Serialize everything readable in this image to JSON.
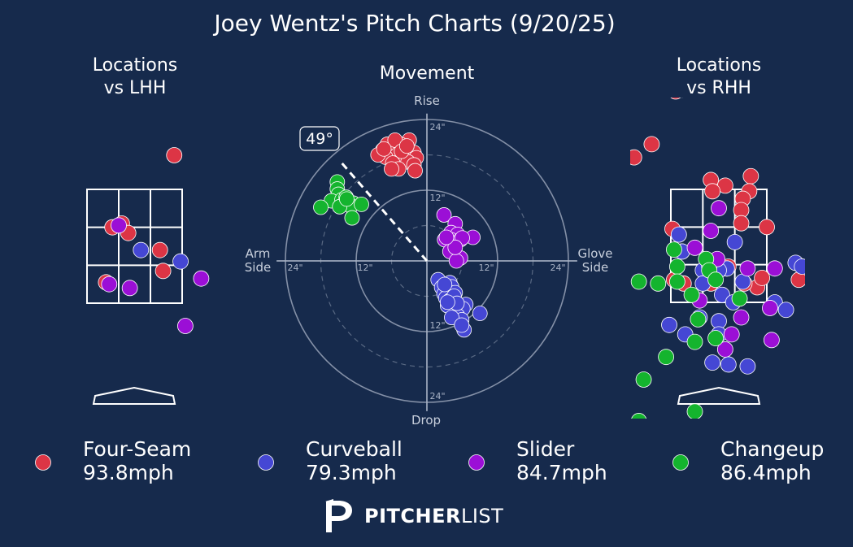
{
  "colors": {
    "background": "#162a4c",
    "four_seam": "#dc3545",
    "curveball": "#4547d4",
    "slider": "#9b0fd6",
    "changeup": "#14b42e",
    "grid": "#a9b3c6"
  },
  "title": "Joey Wentz's Pitch Charts (9/20/25)",
  "panels": {
    "lhh_title": [
      "Locations",
      "vs LHH"
    ],
    "movement_title": "Movement",
    "rhh_title": [
      "Locations",
      "vs RHH"
    ]
  },
  "movement_axes": {
    "top": "Rise",
    "bottom": "Drop",
    "left": [
      "Arm",
      "Side"
    ],
    "right": [
      "Glove",
      "Side"
    ],
    "ring_labels": [
      "24\"",
      "12\"",
      "12\"",
      "24\"",
      "24\"",
      "12\"",
      "12\"",
      "24\""
    ],
    "arm_angle_label": "49°"
  },
  "legend": [
    {
      "name": "Four-Seam",
      "speed": "93.8mph",
      "color_key": "four_seam"
    },
    {
      "name": "Curveball",
      "speed": "79.3mph",
      "color_key": "curveball"
    },
    {
      "name": "Slider",
      "speed": "84.7mph",
      "color_key": "slider"
    },
    {
      "name": "Changeup",
      "speed": "86.4mph",
      "color_key": "changeup"
    }
  ],
  "logo": {
    "bold": "PITCHER",
    "light": "LIST"
  },
  "chart_data": [
    {
      "type": "scatter",
      "title": "Locations vs LHH",
      "x_unit": "strike-zone thirds (0 = left edge, 3 = right edge)",
      "y_unit": "strike-zone thirds (0 = bottom, 3 = top)",
      "series": [
        {
          "name": "Four-Seam",
          "points": [
            [
              2.75,
              3.9
            ],
            [
              0.8,
              2.0
            ],
            [
              1.1,
              2.1
            ],
            [
              1.3,
              1.85
            ],
            [
              2.3,
              1.4
            ],
            [
              2.4,
              0.85
            ],
            [
              0.6,
              0.55
            ]
          ]
        },
        {
          "name": "Curveball",
          "points": [
            [
              1.7,
              1.4
            ],
            [
              2.95,
              1.1
            ]
          ]
        },
        {
          "name": "Slider",
          "points": [
            [
              1.0,
              2.05
            ],
            [
              0.7,
              0.5
            ],
            [
              1.35,
              0.4
            ],
            [
              3.6,
              0.65
            ],
            [
              3.1,
              -0.6
            ]
          ]
        },
        {
          "name": "Changeup",
          "points": []
        }
      ]
    },
    {
      "type": "scatter",
      "title": "Movement",
      "xlabel": "Arm Side / Glove Side",
      "ylabel": "Drop / Rise",
      "xlim": [
        -24,
        24
      ],
      "ylim": [
        -24,
        24
      ],
      "x_unit": "inches",
      "y_unit": "inches",
      "arm_angle_deg": 49,
      "series": [
        {
          "name": "Four-Seam",
          "points": [
            [
              -3.0,
              20.5
            ],
            [
              -4.5,
              19.8
            ],
            [
              -6.0,
              19.3
            ],
            [
              -7.5,
              18.8
            ],
            [
              -3.8,
              18.5
            ],
            [
              -5.5,
              18.0
            ],
            [
              -2.2,
              18.4
            ],
            [
              -7.0,
              17.6
            ],
            [
              -4.2,
              17.2
            ],
            [
              -1.8,
              17.5
            ],
            [
              -5.0,
              16.7
            ],
            [
              -3.2,
              16.8
            ],
            [
              -8.3,
              18.0
            ],
            [
              -2.2,
              16.3
            ],
            [
              -5.8,
              16.6
            ],
            [
              -6.7,
              19.8
            ],
            [
              -5.4,
              20.5
            ],
            [
              -4.8,
              15.6
            ],
            [
              -6.0,
              15.6
            ],
            [
              -2.0,
              15.3
            ],
            [
              -7.3,
              19.0
            ],
            [
              -4.3,
              18.6
            ],
            [
              -3.4,
              19.5
            ]
          ]
        },
        {
          "name": "Curveball",
          "points": [
            [
              1.9,
              -3.2
            ],
            [
              3.9,
              -3.7
            ],
            [
              4.2,
              -4.4
            ],
            [
              2.5,
              -4.5
            ],
            [
              3.7,
              -5.3
            ],
            [
              4.8,
              -5.4
            ],
            [
              2.9,
              -5.6
            ],
            [
              3.2,
              -6.3
            ],
            [
              6.6,
              -7.4
            ],
            [
              4.7,
              -7.9
            ],
            [
              3.5,
              -7.6
            ],
            [
              9.0,
              -8.9
            ],
            [
              6.1,
              -8.1
            ],
            [
              5.2,
              -9.3
            ],
            [
              5.9,
              -10.0
            ],
            [
              4.2,
              -9.6
            ],
            [
              3.9,
              -6.7
            ],
            [
              4.6,
              -6.0
            ],
            [
              5.1,
              -7.2
            ],
            [
              3.0,
              -4.0
            ],
            [
              6.3,
              -11.7
            ],
            [
              5.9,
              -10.9
            ],
            [
              3.5,
              -7.0
            ]
          ]
        },
        {
          "name": "Slider",
          "points": [
            [
              2.9,
              7.8
            ],
            [
              4.8,
              6.3
            ],
            [
              4.1,
              4.8
            ],
            [
              5.2,
              4.5
            ],
            [
              7.8,
              4.0
            ],
            [
              4.1,
              3.6
            ],
            [
              5.7,
              3.6
            ],
            [
              3.0,
              3.6
            ],
            [
              6.0,
              3.9
            ],
            [
              3.9,
              1.6
            ],
            [
              5.7,
              0.5
            ],
            [
              5.0,
              0.0
            ],
            [
              4.8,
              2.3
            ],
            [
              3.3,
              4.0
            ]
          ]
        },
        {
          "name": "Changeup",
          "points": [
            [
              -15.2,
              13.4
            ],
            [
              -15.2,
              12.2
            ],
            [
              -15.0,
              11.3
            ],
            [
              -16.2,
              10.2
            ],
            [
              -14.4,
              10.4
            ],
            [
              -13.7,
              10.8
            ],
            [
              -12.5,
              9.8
            ],
            [
              -12.9,
              9.3
            ],
            [
              -11.1,
              9.6
            ],
            [
              -14.8,
              9.2
            ],
            [
              -12.7,
              7.3
            ],
            [
              -18.0,
              9.1
            ],
            [
              -13.6,
              10.5
            ]
          ]
        }
      ]
    },
    {
      "type": "scatter",
      "title": "Locations vs RHH",
      "x_unit": "strike-zone thirds (0 = left edge, 3 = right edge)",
      "y_unit": "strike-zone thirds (0 = bottom, 3 = top)",
      "series": [
        {
          "name": "Four-Seam",
          "points": [
            [
              1.45,
              6.0
            ],
            [
              0.35,
              5.65
            ],
            [
              0.15,
              5.6
            ],
            [
              -0.6,
              4.2
            ],
            [
              -1.15,
              3.85
            ],
            [
              1.25,
              3.25
            ],
            [
              1.7,
              3.1
            ],
            [
              2.5,
              3.35
            ],
            [
              1.3,
              2.95
            ],
            [
              2.45,
              2.95
            ],
            [
              2.25,
              2.75
            ],
            [
              2.2,
              2.45
            ],
            [
              2.2,
              2.1
            ],
            [
              3.0,
              2.0
            ],
            [
              0.05,
              1.95
            ],
            [
              1.75,
              0.9
            ],
            [
              0.4,
              0.5
            ],
            [
              2.7,
              0.4
            ],
            [
              2.85,
              0.65
            ],
            [
              4.0,
              0.6
            ],
            [
              0.1,
              0.6
            ],
            [
              1.25,
              0.5
            ],
            [
              2.3,
              0.5
            ],
            [
              1.8,
              0.95
            ]
          ]
        },
        {
          "name": "Curveball",
          "points": [
            [
              0.25,
              1.8
            ],
            [
              2.0,
              1.6
            ],
            [
              0.35,
              1.35
            ],
            [
              1.0,
              0.85
            ],
            [
              1.75,
              0.9
            ],
            [
              1.5,
              0.85
            ],
            [
              1.6,
              0.2
            ],
            [
              1.95,
              0.0
            ],
            [
              0.9,
              -0.4
            ],
            [
              1.5,
              -0.5
            ],
            [
              1.5,
              -0.85
            ],
            [
              0.45,
              -0.85
            ],
            [
              -0.05,
              -0.6
            ],
            [
              3.25,
              0.0
            ],
            [
              3.6,
              -0.2
            ],
            [
              3.9,
              1.05
            ],
            [
              4.1,
              0.95
            ],
            [
              1.3,
              -1.6
            ],
            [
              1.8,
              -1.65
            ],
            [
              2.4,
              -1.7
            ],
            [
              2.25,
              0.55
            ],
            [
              3.05,
              -3.5
            ],
            [
              1.2,
              0.95
            ],
            [
              1.0,
              0.5
            ]
          ]
        },
        {
          "name": "Slider",
          "points": [
            [
              1.5,
              2.5
            ],
            [
              1.25,
              1.9
            ],
            [
              0.75,
              1.45
            ],
            [
              1.45,
              1.15
            ],
            [
              2.4,
              0.9
            ],
            [
              3.25,
              0.9
            ],
            [
              0.9,
              0.05
            ],
            [
              2.2,
              -0.4
            ],
            [
              3.1,
              -0.15
            ],
            [
              1.7,
              -1.25
            ],
            [
              3.15,
              -1.0
            ],
            [
              1.9,
              -0.85
            ]
          ]
        },
        {
          "name": "Changeup",
          "points": [
            [
              0.1,
              1.4
            ],
            [
              0.2,
              0.95
            ],
            [
              1.1,
              1.15
            ],
            [
              0.2,
              0.55
            ],
            [
              -1.0,
              0.55
            ],
            [
              -0.4,
              0.5
            ],
            [
              1.2,
              0.85
            ],
            [
              2.15,
              0.1
            ],
            [
              0.85,
              -0.45
            ],
            [
              1.4,
              -0.95
            ],
            [
              -0.15,
              -1.45
            ],
            [
              -0.85,
              -2.05
            ],
            [
              0.75,
              -1.05
            ],
            [
              0.75,
              -2.9
            ],
            [
              -1.0,
              -3.15
            ],
            [
              0.65,
              0.2
            ],
            [
              1.4,
              0.6
            ]
          ]
        }
      ]
    }
  ]
}
